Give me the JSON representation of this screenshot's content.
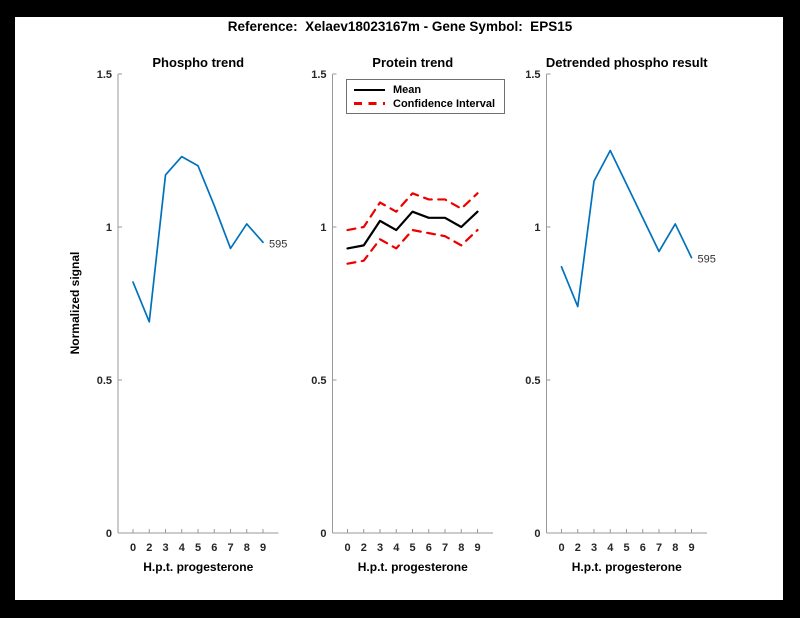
{
  "figure": {
    "title": "Reference:  Xelaev18023167m - Gene Symbol:  EPS15",
    "background": "#ffffff",
    "frame_color": "#000000"
  },
  "colors": {
    "line_blue": "#0072BD",
    "ci_red": "#EE0000",
    "mean_black": "#000000",
    "axis_gray": "#999999",
    "tick_label": "#262626",
    "annotation": "#333333"
  },
  "chart_data": [
    {
      "type": "line",
      "title": "Phospho trend",
      "xlabel": "H.p.t. progesterone",
      "ylabel": "Normalized signal",
      "categories": [
        "0",
        "2",
        "3",
        "4",
        "5",
        "6",
        "7",
        "8",
        "9"
      ],
      "yticks": [
        "0",
        "0.5",
        "1",
        "1.5"
      ],
      "ylim": [
        0,
        1.5
      ],
      "grid": false,
      "series": [
        {
          "color": "#0072BD",
          "style": "solid",
          "values": [
            0.82,
            0.69,
            1.17,
            1.23,
            1.2,
            1.07,
            0.93,
            1.01,
            0.95
          ]
        }
      ],
      "end_label": "595"
    },
    {
      "type": "line",
      "title": "Protein trend",
      "xlabel": "H.p.t. progesterone",
      "categories": [
        "0",
        "2",
        "3",
        "4",
        "5",
        "6",
        "7",
        "8",
        "9"
      ],
      "yticks": [
        "0",
        "0.5",
        "1",
        "1.5"
      ],
      "ylim": [
        0,
        1.5
      ],
      "grid": false,
      "legend_position": "northwest",
      "series": [
        {
          "label": "Mean",
          "color": "#000000",
          "style": "solid",
          "values": [
            0.93,
            0.94,
            1.02,
            0.99,
            1.05,
            1.03,
            1.03,
            1.0,
            1.05
          ]
        },
        {
          "label": "Confidence Interval",
          "color": "#EE0000",
          "style": "dashed",
          "values_upper": [
            0.99,
            1.0,
            1.08,
            1.05,
            1.11,
            1.09,
            1.09,
            1.06,
            1.11
          ],
          "values_lower": [
            0.88,
            0.89,
            0.96,
            0.93,
            0.99,
            0.98,
            0.97,
            0.94,
            0.99
          ]
        }
      ]
    },
    {
      "type": "line",
      "title": "Detrended phospho result",
      "xlabel": "H.p.t. progesterone",
      "categories": [
        "0",
        "2",
        "3",
        "4",
        "5",
        "6",
        "7",
        "8",
        "9"
      ],
      "yticks": [
        "0",
        "0.5",
        "1",
        "1.5"
      ],
      "ylim": [
        0,
        1.5
      ],
      "grid": false,
      "series": [
        {
          "color": "#0072BD",
          "style": "solid",
          "values": [
            0.87,
            0.74,
            1.15,
            1.25,
            1.14,
            1.03,
            0.92,
            1.01,
            0.9
          ]
        }
      ],
      "end_label": "595"
    }
  ]
}
